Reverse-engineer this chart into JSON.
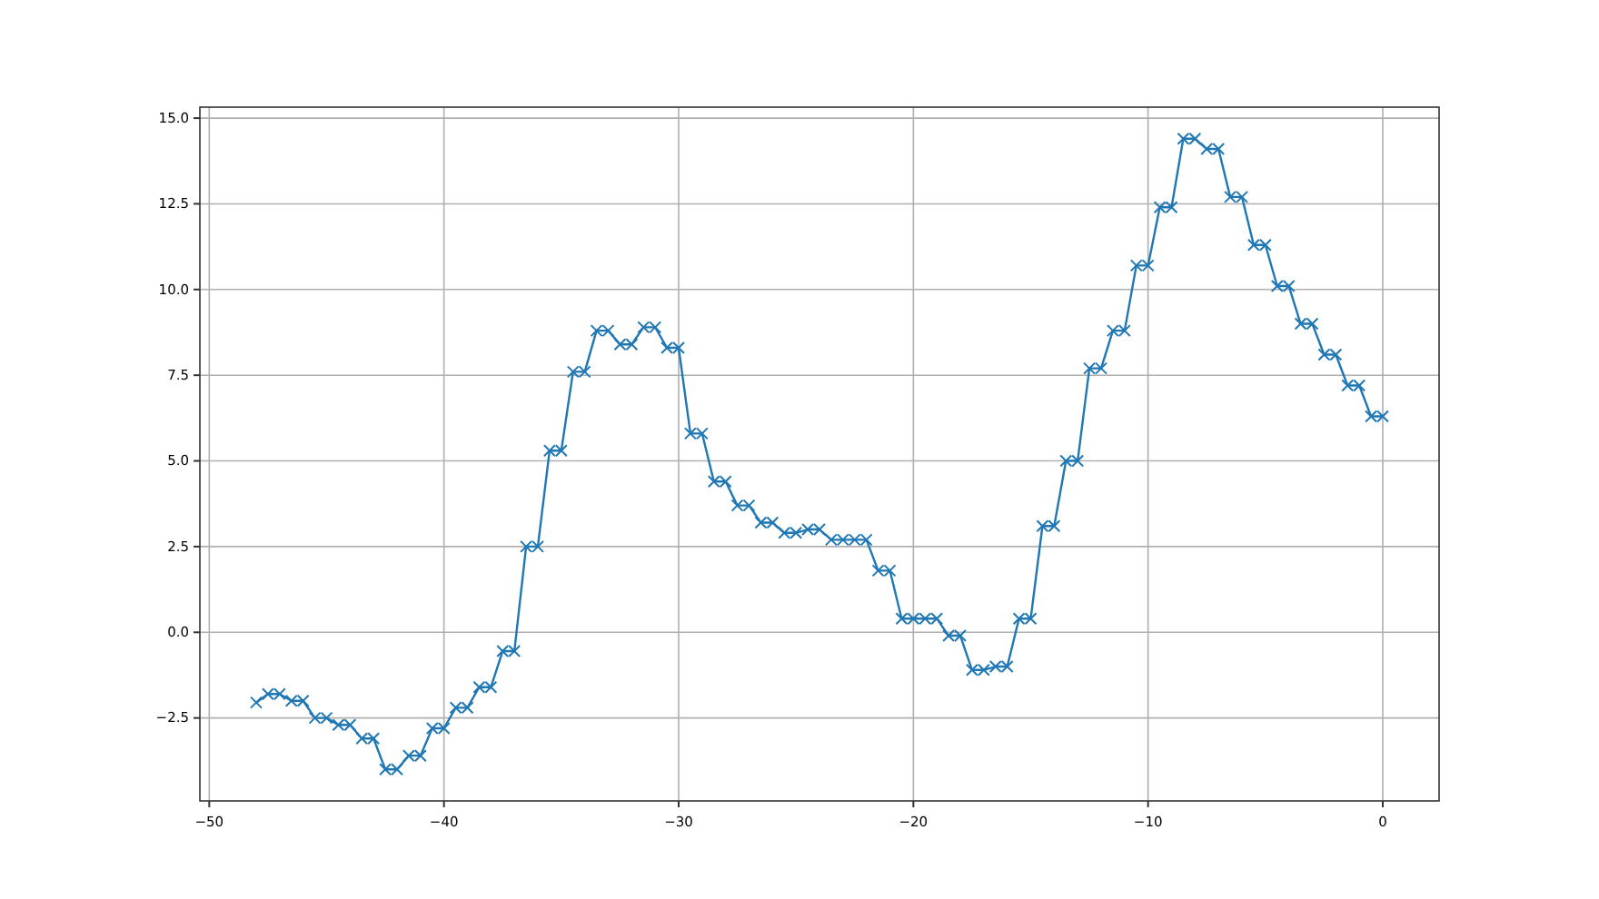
{
  "chart_data": {
    "type": "line",
    "x": [
      -48,
      -47.5,
      -47,
      -46.5,
      -46,
      -45.5,
      -45,
      -44.5,
      -44,
      -43.5,
      -43,
      -42.5,
      -42,
      -41.5,
      -41,
      -40.5,
      -40,
      -39.5,
      -39,
      -38.5,
      -38,
      -37.5,
      -37,
      -36.5,
      -36,
      -35.5,
      -35,
      -34.5,
      -34,
      -33.5,
      -33,
      -32.5,
      -32,
      -31.5,
      -31,
      -30.5,
      -30,
      -29.5,
      -29,
      -28.5,
      -28,
      -27.5,
      -27,
      -26.5,
      -26,
      -25.5,
      -25,
      -24.5,
      -24,
      -23.5,
      -23,
      -22.5,
      -22,
      -21.5,
      -21,
      -20.5,
      -20,
      -19.5,
      -19,
      -18.5,
      -18,
      -17.5,
      -17,
      -16.5,
      -16,
      -15.5,
      -15,
      -14.5,
      -14,
      -13.5,
      -13,
      -12.5,
      -12,
      -11.5,
      -11,
      -10.5,
      -10,
      -9.5,
      -9,
      -8.5,
      -8,
      -7.5,
      -7,
      -6.5,
      -6,
      -5.5,
      -5,
      -4.5,
      -4,
      -3.5,
      -3,
      -2.5,
      -2,
      -1.5,
      -1,
      -0.5,
      0
    ],
    "series": [
      {
        "color": "#1f77b4",
        "values": [
          -2.05,
          -1.8,
          -1.8,
          -2.0,
          -2.0,
          -2.5,
          -2.5,
          -2.7,
          -2.7,
          -3.1,
          -3.1,
          -4.0,
          -4.0,
          -3.6,
          -3.6,
          -2.8,
          -2.8,
          -2.2,
          -2.2,
          -1.6,
          -1.6,
          -0.55,
          -0.55,
          2.5,
          2.5,
          5.3,
          5.3,
          7.6,
          7.6,
          8.8,
          8.8,
          8.4,
          8.4,
          8.9,
          8.9,
          8.3,
          8.3,
          5.8,
          5.8,
          4.4,
          4.4,
          3.7,
          3.7,
          3.2,
          3.2,
          2.9,
          2.9,
          3.0,
          3.0,
          2.7,
          2.7,
          2.7,
          2.7,
          1.8,
          1.8,
          0.4,
          0.4,
          0.4,
          0.4,
          -0.1,
          -0.1,
          -1.1,
          -1.1,
          -1.0,
          -1.0,
          0.4,
          0.4,
          3.1,
          3.1,
          5.0,
          5.0,
          7.7,
          7.7,
          8.8,
          8.8,
          10.7,
          10.7,
          12.4,
          12.4,
          14.4,
          14.4,
          14.1,
          14.1,
          12.7,
          12.7,
          11.3,
          11.3,
          10.1,
          10.1,
          9.0,
          9.0,
          8.1,
          8.1,
          7.2,
          7.2,
          6.3,
          6.3
        ]
      }
    ],
    "xlim": [
      -50.4,
      2.4
    ],
    "ylim": [
      -4.92,
      15.32
    ],
    "xticks": [
      -50,
      -40,
      -30,
      -20,
      -10,
      0
    ],
    "yticks": [
      {
        "value": -2.5,
        "label": "−2.5"
      },
      {
        "value": 0,
        "label": "0.0"
      },
      {
        "value": 2.5,
        "label": "2.5"
      },
      {
        "value": 5,
        "label": "5.0"
      },
      {
        "value": 7.5,
        "label": "7.5"
      },
      {
        "value": 10,
        "label": "10.0"
      },
      {
        "value": 12.5,
        "label": "12.5"
      },
      {
        "value": 15,
        "label": "15.0"
      }
    ],
    "grid": true,
    "marker": "cross",
    "line_style": "solid"
  }
}
